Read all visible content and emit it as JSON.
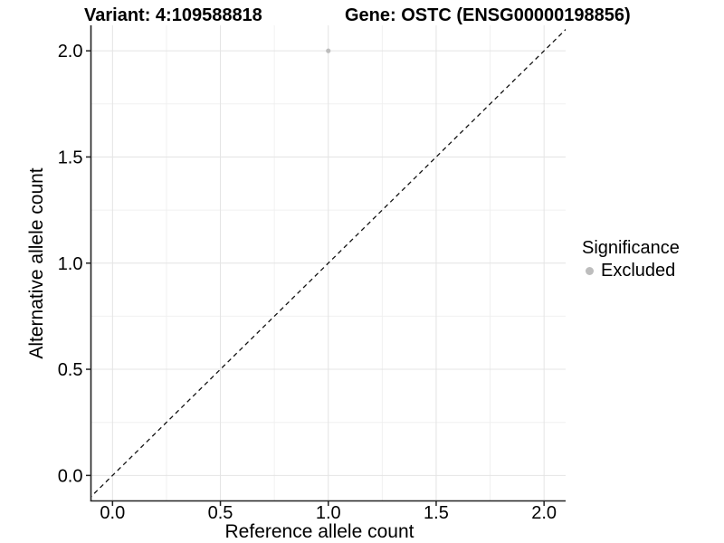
{
  "chart_data": {
    "type": "scatter",
    "title_left": "Variant: 4:109588818",
    "title_right": "Gene: OSTC (ENSG00000198856)",
    "xlabel": "Reference allele count",
    "ylabel": "Alternative allele count",
    "xlim": [
      -0.1,
      2.1
    ],
    "ylim": [
      -0.12,
      2.12
    ],
    "xticks": {
      "values": [
        0,
        0.5,
        1,
        1.5,
        2
      ],
      "labels": [
        "0.0",
        "0.5",
        "1.0",
        "1.5",
        "2.0"
      ]
    },
    "yticks": {
      "values": [
        0,
        0.5,
        1,
        1.5,
        2
      ],
      "labels": [
        "0.0",
        "0.5",
        "1.0",
        "1.5",
        "2.0"
      ]
    },
    "minor_xticks": [
      0.25,
      0.75,
      1.25,
      1.75
    ],
    "minor_yticks": [
      0.25,
      0.75,
      1.25,
      1.75
    ],
    "grid": "major_and_minor",
    "reference_line": {
      "kind": "identity",
      "slope": 1,
      "intercept": 0,
      "style": "dashed",
      "color": "#111111"
    },
    "series": [
      {
        "name": "Excluded",
        "color": "#bdbdbd",
        "points": [
          {
            "x": 1.0,
            "y": 2.0
          }
        ]
      }
    ],
    "legend": {
      "title": "Significance",
      "position": "right",
      "items": [
        {
          "label": "Excluded",
          "color": "#bdbdbd"
        }
      ]
    },
    "colors": {
      "background": "#ffffff",
      "axis": "#222222",
      "tick": "#222222",
      "grid_major": "#e4e4e4",
      "grid_minor": "#f0f0f0",
      "text": "#000000"
    }
  }
}
